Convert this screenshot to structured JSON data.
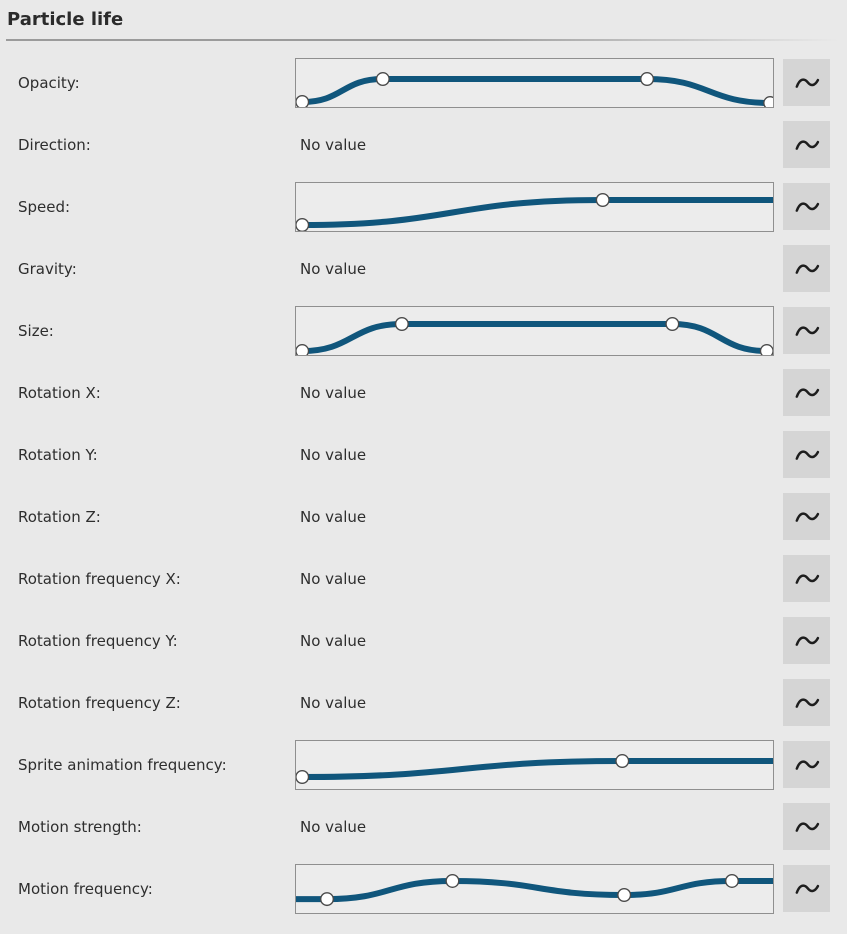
{
  "header": {
    "title": "Particle life"
  },
  "colors": {
    "page_bg": "#e9e9e9",
    "widget_bg": "#ececec",
    "widget_border": "#8f8f8f",
    "curve_stroke": "#10567c",
    "point_fill": "#ffffff",
    "point_stroke": "#4a4a4a",
    "button_bg": "#d5d5d5",
    "icon_color": "#1e1e1e",
    "text_color": "#2e2e2e"
  },
  "curve_button_icon": "sine-wave-icon",
  "rows": [
    {
      "label": "Opacity:",
      "type": "curve",
      "curve": {
        "points": [
          [
            0.013,
            0.104
          ],
          [
            0.182,
            0.583
          ],
          [
            0.736,
            0.583
          ],
          [
            0.994,
            0.083
          ]
        ],
        "extend_left": false,
        "extend_right": false
      }
    },
    {
      "label": "Direction:",
      "type": "empty",
      "value": "No value"
    },
    {
      "label": "Speed:",
      "type": "curve",
      "curve": {
        "points": [
          [
            0.013,
            0.125
          ],
          [
            0.643,
            0.646
          ]
        ],
        "extend_left": false,
        "extend_right": true
      }
    },
    {
      "label": "Gravity:",
      "type": "empty",
      "value": "No value"
    },
    {
      "label": "Size:",
      "type": "curve",
      "curve": {
        "points": [
          [
            0.013,
            0.083
          ],
          [
            0.222,
            0.646
          ],
          [
            0.789,
            0.646
          ],
          [
            0.987,
            0.083
          ]
        ],
        "extend_left": false,
        "extend_right": false
      }
    },
    {
      "label": "Rotation X:",
      "type": "empty",
      "value": "No value"
    },
    {
      "label": "Rotation Y:",
      "type": "empty",
      "value": "No value"
    },
    {
      "label": "Rotation Z:",
      "type": "empty",
      "value": "No value"
    },
    {
      "label": "Rotation frequency X:",
      "type": "empty",
      "value": "No value"
    },
    {
      "label": "Rotation frequency Y:",
      "type": "empty",
      "value": "No value"
    },
    {
      "label": "Rotation frequency Z:",
      "type": "empty",
      "value": "No value"
    },
    {
      "label": "Sprite animation frequency:",
      "type": "curve",
      "curve": {
        "points": [
          [
            0.013,
            0.25
          ],
          [
            0.684,
            0.583
          ]
        ],
        "extend_left": false,
        "extend_right": true
      }
    },
    {
      "label": "Motion strength:",
      "type": "empty",
      "value": "No value"
    },
    {
      "label": "Motion frequency:",
      "type": "curve",
      "curve": {
        "points": [
          [
            0.065,
            0.29
          ],
          [
            0.328,
            0.667
          ],
          [
            0.688,
            0.375
          ],
          [
            0.914,
            0.667
          ]
        ],
        "extend_left": true,
        "extend_right": true
      }
    }
  ]
}
